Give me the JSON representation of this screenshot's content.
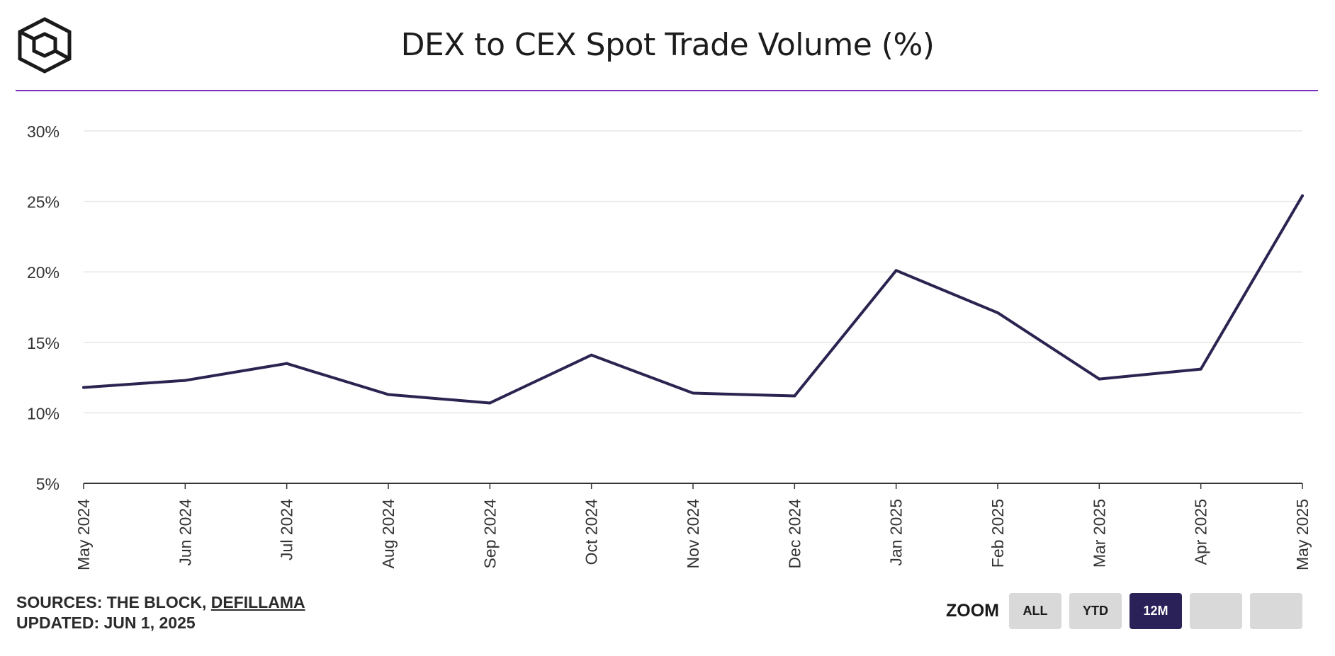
{
  "header": {
    "title": "DEX to CEX Spot Trade Volume (%)",
    "logo_icon": "cube-logo-icon",
    "divider_color": "#7b2fbe"
  },
  "colors": {
    "line": "#2a2450",
    "grid": "#e6e6e6",
    "axis": "#333333",
    "active_button": "#2a2158",
    "inactive_button": "#d9d9d9"
  },
  "chart_data": {
    "type": "line",
    "title": "DEX to CEX Spot Trade Volume (%)",
    "xlabel": "",
    "ylabel": "",
    "grid": true,
    "categories": [
      "May 2024",
      "Jun 2024",
      "Jul 2024",
      "Aug 2024",
      "Sep 2024",
      "Oct 2024",
      "Nov 2024",
      "Dec 2024",
      "Jan 2025",
      "Feb 2025",
      "Mar 2025",
      "Apr 2025",
      "May 2025"
    ],
    "values": [
      11.8,
      12.3,
      13.5,
      11.3,
      10.7,
      14.1,
      11.4,
      11.2,
      20.1,
      17.1,
      12.4,
      13.1,
      25.4
    ],
    "ylim": [
      5,
      32
    ],
    "yticks": [
      5,
      10,
      15,
      20,
      25,
      30
    ],
    "ytick_labels": [
      "5%",
      "10%",
      "15%",
      "20%",
      "25%",
      "30%"
    ]
  },
  "footer": {
    "sources_prefix": "SOURCES: THE BLOCK, ",
    "sources_link": "DEFILLAMA",
    "updated": "UPDATED: JUN 1, 2025"
  },
  "zoom": {
    "label": "ZOOM",
    "buttons": [
      {
        "label": "ALL",
        "active": false
      },
      {
        "label": "YTD",
        "active": false
      },
      {
        "label": "12M",
        "active": true
      },
      {
        "label": "",
        "active": false
      },
      {
        "label": "",
        "active": false
      }
    ]
  }
}
